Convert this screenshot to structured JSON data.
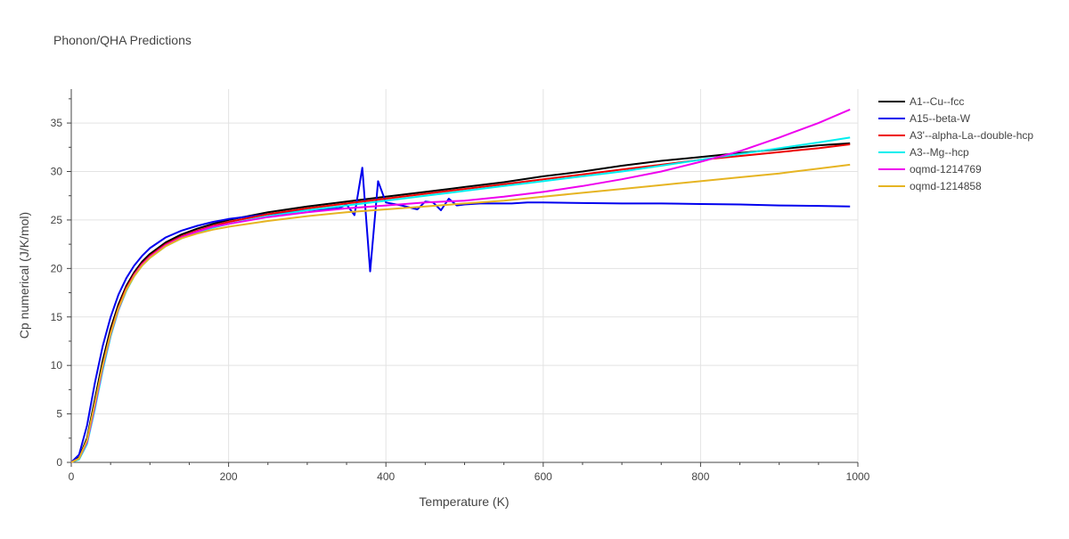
{
  "chart_data": {
    "type": "line",
    "title": "Phonon/QHA Predictions",
    "xlabel": "Temperature (K)",
    "ylabel": "Cp numerical (J/K/mol)",
    "xlim": [
      0,
      1000
    ],
    "ylim": [
      0,
      38.5
    ],
    "xticks": [
      0,
      200,
      400,
      600,
      800,
      1000
    ],
    "yticks": [
      0,
      5,
      10,
      15,
      20,
      25,
      30,
      35
    ],
    "grid": true,
    "legend_position": "top-right",
    "series": [
      {
        "name": "A1--Cu--fcc",
        "color": "#000000",
        "x": [
          0,
          10,
          20,
          30,
          40,
          50,
          60,
          70,
          80,
          90,
          100,
          120,
          140,
          160,
          180,
          200,
          250,
          300,
          350,
          400,
          450,
          500,
          550,
          600,
          650,
          700,
          750,
          800,
          850,
          900,
          950,
          990
        ],
        "y": [
          0,
          0.5,
          2.5,
          6.5,
          10.5,
          13.8,
          16.3,
          18.2,
          19.6,
          20.7,
          21.5,
          22.7,
          23.5,
          24.1,
          24.6,
          25.0,
          25.8,
          26.4,
          26.9,
          27.4,
          27.9,
          28.4,
          28.9,
          29.5,
          30.0,
          30.6,
          31.1,
          31.5,
          31.9,
          32.3,
          32.7,
          32.9
        ]
      },
      {
        "name": "A15--beta-W",
        "color": "#0000ee",
        "x": [
          0,
          10,
          20,
          30,
          40,
          50,
          60,
          70,
          80,
          90,
          100,
          120,
          140,
          160,
          180,
          200,
          250,
          300,
          340,
          350,
          360,
          370,
          380,
          390,
          400,
          420,
          440,
          450,
          460,
          470,
          480,
          490,
          500,
          520,
          540,
          560,
          580,
          600,
          650,
          700,
          750,
          800,
          850,
          900,
          950,
          990
        ],
        "y": [
          0,
          0.8,
          3.8,
          8.2,
          12.0,
          15.0,
          17.3,
          19.0,
          20.3,
          21.3,
          22.1,
          23.2,
          23.9,
          24.4,
          24.8,
          25.1,
          25.6,
          26.0,
          26.2,
          26.6,
          25.5,
          30.4,
          19.7,
          29.0,
          26.8,
          26.5,
          26.1,
          26.9,
          26.8,
          26.0,
          27.2,
          26.5,
          26.6,
          26.7,
          26.7,
          26.7,
          26.8,
          26.8,
          26.75,
          26.7,
          26.7,
          26.65,
          26.6,
          26.5,
          26.45,
          26.4
        ]
      },
      {
        "name": "A3'--alpha-La--double-hcp",
        "color": "#ee0000",
        "x": [
          0,
          10,
          20,
          30,
          40,
          50,
          60,
          70,
          80,
          90,
          100,
          120,
          140,
          160,
          180,
          200,
          250,
          300,
          350,
          400,
          450,
          500,
          550,
          600,
          650,
          700,
          750,
          800,
          850,
          900,
          950,
          990
        ],
        "y": [
          0,
          0.4,
          2.2,
          6.0,
          10.0,
          13.4,
          16.0,
          18.0,
          19.4,
          20.5,
          21.3,
          22.5,
          23.3,
          23.9,
          24.4,
          24.8,
          25.6,
          26.2,
          26.7,
          27.2,
          27.7,
          28.2,
          28.7,
          29.2,
          29.7,
          30.2,
          30.7,
          31.2,
          31.6,
          32.0,
          32.4,
          32.8
        ]
      },
      {
        "name": "A3--Mg--hcp",
        "color": "#00eeee",
        "x": [
          0,
          10,
          20,
          30,
          40,
          50,
          60,
          70,
          80,
          90,
          100,
          120,
          140,
          160,
          180,
          200,
          250,
          300,
          350,
          400,
          450,
          500,
          550,
          600,
          650,
          700,
          750,
          800,
          850,
          900,
          950,
          990
        ],
        "y": [
          0,
          0.3,
          1.9,
          5.5,
          9.5,
          13.0,
          15.7,
          17.7,
          19.2,
          20.3,
          21.1,
          22.3,
          23.1,
          23.7,
          24.2,
          24.6,
          25.4,
          26.0,
          26.5,
          27.0,
          27.5,
          28.0,
          28.5,
          29.0,
          29.5,
          30.0,
          30.6,
          31.2,
          31.8,
          32.4,
          33.0,
          33.5
        ]
      },
      {
        "name": "oqmd-1214769",
        "color": "#ee00ee",
        "x": [
          0,
          10,
          20,
          30,
          40,
          50,
          60,
          70,
          80,
          90,
          100,
          120,
          140,
          160,
          180,
          200,
          250,
          300,
          350,
          400,
          450,
          500,
          550,
          600,
          650,
          700,
          750,
          800,
          850,
          900,
          950,
          990
        ],
        "y": [
          0,
          0.4,
          2.1,
          5.8,
          9.8,
          13.2,
          15.8,
          17.8,
          19.3,
          20.4,
          21.2,
          22.4,
          23.2,
          23.8,
          24.3,
          24.6,
          25.3,
          25.8,
          26.2,
          26.5,
          26.8,
          27.0,
          27.4,
          27.9,
          28.5,
          29.2,
          30.0,
          31.0,
          32.1,
          33.5,
          35.0,
          36.4
        ]
      },
      {
        "name": "oqmd-1214858",
        "color": "#e6b422",
        "x": [
          0,
          10,
          20,
          30,
          40,
          50,
          60,
          70,
          80,
          90,
          100,
          120,
          140,
          160,
          180,
          200,
          250,
          300,
          350,
          400,
          450,
          500,
          550,
          600,
          650,
          700,
          750,
          800,
          850,
          900,
          950,
          990
        ],
        "y": [
          0,
          0.4,
          2.3,
          6.1,
          10.0,
          13.3,
          15.9,
          17.8,
          19.2,
          20.3,
          21.1,
          22.3,
          23.1,
          23.6,
          24.0,
          24.3,
          24.9,
          25.4,
          25.8,
          26.1,
          26.4,
          26.7,
          27.0,
          27.4,
          27.8,
          28.2,
          28.6,
          29.0,
          29.4,
          29.8,
          30.3,
          30.7
        ]
      }
    ]
  }
}
